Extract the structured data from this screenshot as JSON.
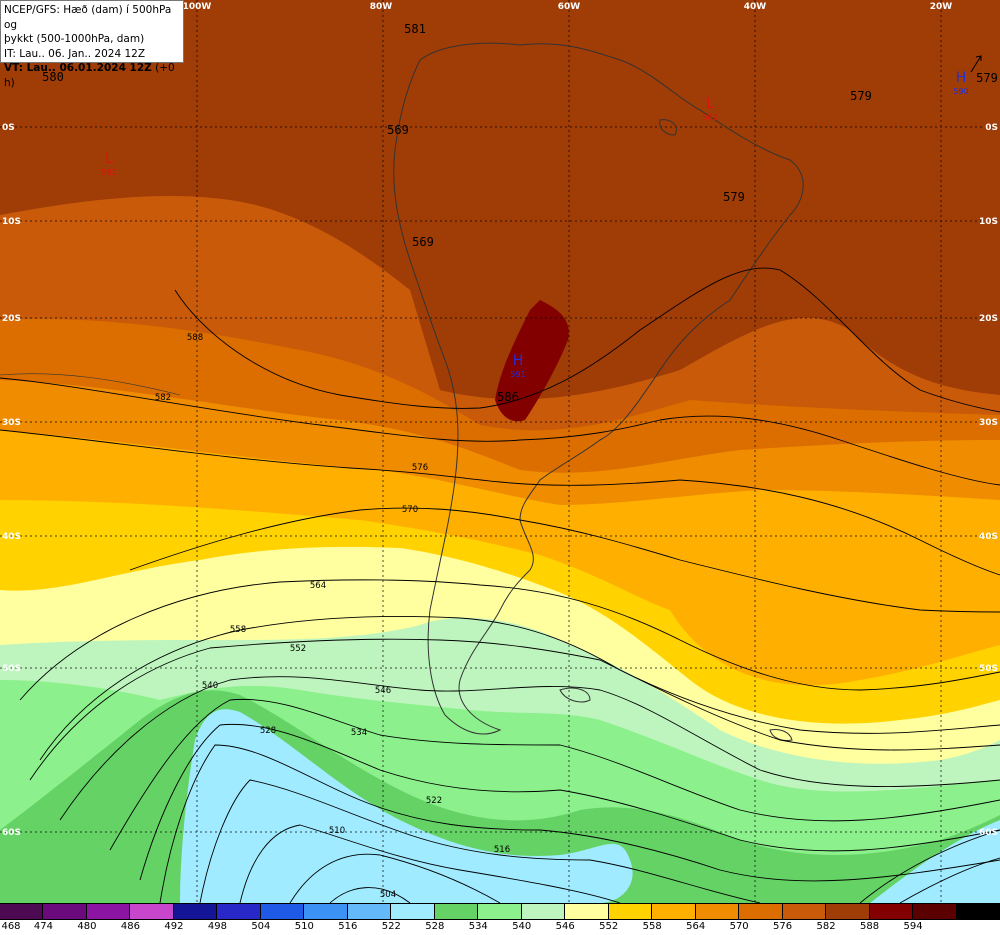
{
  "header": {
    "line1": "NCEP/GFS: Hæð (dam) í 500hPa og",
    "line2": "þykkt (500-1000hPa, dam)",
    "line3": "IT: Lau.. 06. Jan.. 2024 12Z",
    "line4_bold": "VT: Lau.. 06.01.2024 12Z",
    "line4_rest": "(+0 h)"
  },
  "lon_labels": [
    "100W",
    "80W",
    "60W",
    "40W",
    "20W"
  ],
  "lat_labels": [
    "0S",
    "10S",
    "20S",
    "30S",
    "40S",
    "50S",
    "60S"
  ],
  "colors": {
    "c468": "#4d0a52",
    "c474": "#6a0a7d",
    "c480": "#8c14a3",
    "c486": "#c846cc",
    "c492": "#141496",
    "c498": "#2828c8",
    "c504": "#1e5ae6",
    "c510": "#3c91f5",
    "c516": "#64b9fa",
    "c522": "#a0ebff",
    "c528": "#64d264",
    "c534": "#8cf08c",
    "c540": "#bef5be",
    "c546": "#ffffa0",
    "c552": "#ffd200",
    "c558": "#ffaf00",
    "c564": "#f08c00",
    "c570": "#dc6e00",
    "c576": "#c85a0a",
    "c582": "#a03c05",
    "c588": "#820000",
    "c594": "#5a0000"
  },
  "colorbar": {
    "values": [
      "468",
      "474",
      "480",
      "486",
      "492",
      "498",
      "504",
      "510",
      "516",
      "522",
      "528",
      "534",
      "540",
      "546",
      "552",
      "558",
      "564",
      "570",
      "576",
      "582",
      "588",
      "594"
    ],
    "colors": [
      "#4d0a52",
      "#6a0a7d",
      "#8c14a3",
      "#c846cc",
      "#141496",
      "#2828c8",
      "#1e5ae6",
      "#3c91f5",
      "#64b9fa",
      "#a0ebff",
      "#64d264",
      "#8cf08c",
      "#bef5be",
      "#ffffa0",
      "#ffd200",
      "#ffaf00",
      "#f08c00",
      "#dc6e00",
      "#c85a0a",
      "#a03c05",
      "#820000",
      "#5a0000",
      "#000000"
    ]
  },
  "thickness_labels": [
    "580",
    "581",
    "569",
    "569",
    "579",
    "579",
    "579",
    "586"
  ],
  "pressure_centers": [
    {
      "type": "L",
      "value": "582"
    },
    {
      "type": "L",
      "value": "582"
    },
    {
      "type": "H",
      "value": "590"
    },
    {
      "type": "H",
      "value": "591"
    }
  ],
  "contour_labels": [
    "588",
    "582",
    "576",
    "570",
    "564",
    "558",
    "552",
    "546",
    "540",
    "534",
    "528",
    "522",
    "516",
    "510",
    "504"
  ]
}
